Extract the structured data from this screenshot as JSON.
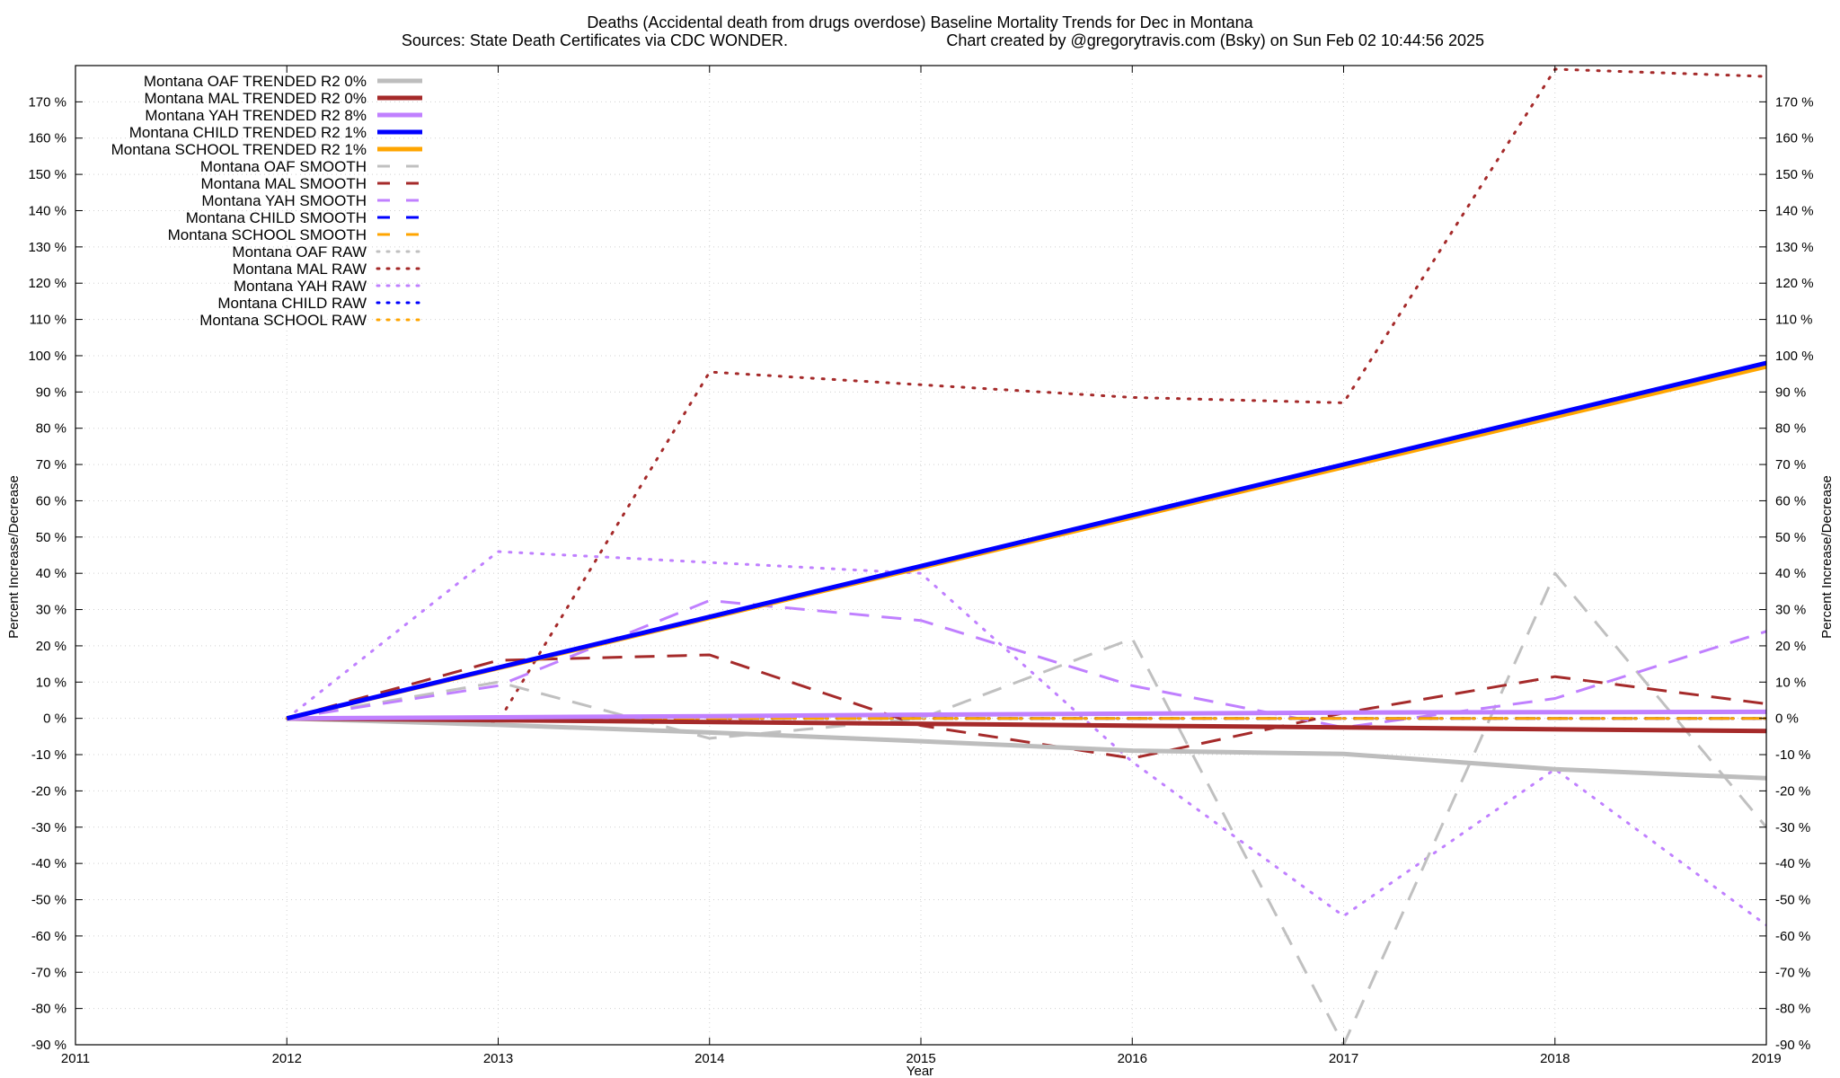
{
  "chart_data": {
    "type": "line",
    "title": "Deaths (Accidental death from drugs overdose)  Baseline Mortality Trends for Dec in Montana",
    "subtitle_left": "Sources: State Death Certificates via CDC WONDER.",
    "subtitle_right": "Chart created by @gregorytravis.com (Bsky) on Sun Feb 02 10:44:56 2025",
    "xlabel": "Year",
    "ylabel_left": "Percent Increase/Decrease",
    "ylabel_right": "Percent Increase/Decrease",
    "xlim": [
      2011,
      2019
    ],
    "ylim": [
      -90,
      180
    ],
    "x_ticks": [
      "2011",
      "2012",
      "2013",
      "2014",
      "2015",
      "2016",
      "2017",
      "2018",
      "2019"
    ],
    "y_ticks": [
      "-90 %",
      "-80 %",
      "-70 %",
      "-60 %",
      "-50 %",
      "-40 %",
      "-30 %",
      "-20 %",
      "-10 %",
      "0 %",
      "10 %",
      "20 %",
      "30 %",
      "40 %",
      "50 %",
      "60 %",
      "70 %",
      "80 %",
      "90 %",
      "100 %",
      "110 %",
      "120 %",
      "130 %",
      "140 %",
      "150 %",
      "160 %",
      "170 %"
    ],
    "grid": true,
    "legend_position": "top-left",
    "series": [
      {
        "name": "Montana OAF TRENDED R2   0%",
        "style": "trend",
        "color": "#bdbdbd",
        "x": [
          2012,
          2013,
          2014,
          2015,
          2016,
          2017,
          2018,
          2019
        ],
        "values": [
          0,
          -1.8,
          -3.9,
          -6.3,
          -8.9,
          -9.8,
          -14,
          -16.5
        ]
      },
      {
        "name": "Montana MAL TRENDED R2   0%",
        "style": "trend",
        "color": "#a52a2a",
        "x": [
          2012,
          2019
        ],
        "values": [
          0,
          -3.5
        ]
      },
      {
        "name": "Montana YAH TRENDED R2   8%",
        "style": "trend",
        "color": "#c080ff",
        "x": [
          2012,
          2013,
          2014,
          2015,
          2016,
          2017,
          2018,
          2019
        ],
        "values": [
          0,
          0.3,
          0.6,
          1.0,
          1.3,
          1.6,
          1.7,
          1.8
        ]
      },
      {
        "name": "Montana CHILD TRENDED R2   1%",
        "style": "trend",
        "color": "#0000ff",
        "x": [
          2012,
          2019
        ],
        "values": [
          0,
          98
        ]
      },
      {
        "name": "Montana SCHOOL TRENDED R2   1%",
        "style": "trend",
        "color": "#ffa500",
        "x": [
          2012,
          2019
        ],
        "values": [
          0,
          97
        ]
      },
      {
        "name": "Montana OAF SMOOTH",
        "style": "smooth",
        "color": "#c0c0c0",
        "x": [
          2012,
          2013,
          2014,
          2015,
          2016,
          2017,
          2018,
          2019
        ],
        "values": [
          0,
          10,
          -5.5,
          0,
          22,
          -90,
          40,
          -30
        ]
      },
      {
        "name": "Montana MAL SMOOTH",
        "style": "smooth",
        "color": "#a52a2a",
        "x": [
          2012,
          2013,
          2014,
          2015,
          2016,
          2017,
          2018,
          2019
        ],
        "values": [
          0,
          16,
          17.5,
          -2,
          -11,
          1.5,
          11.5,
          4
        ]
      },
      {
        "name": "Montana YAH SMOOTH",
        "style": "smooth",
        "color": "#c080ff",
        "x": [
          2012,
          2013,
          2014,
          2015,
          2016,
          2017,
          2018,
          2019
        ],
        "values": [
          0,
          9,
          32.5,
          27,
          9,
          -2.5,
          5.5,
          24
        ]
      },
      {
        "name": "Montana CHILD SMOOTH",
        "style": "smooth",
        "color": "#0000ff",
        "x": [
          2012,
          2019
        ],
        "values": [
          0,
          0
        ]
      },
      {
        "name": "Montana SCHOOL SMOOTH",
        "style": "smooth",
        "color": "#ffa500",
        "x": [
          2012,
          2019
        ],
        "values": [
          0,
          0
        ]
      },
      {
        "name": "Montana OAF RAW",
        "style": "raw",
        "color": "#c0c0c0",
        "x": [
          2012,
          2019
        ],
        "values": [
          0,
          0
        ]
      },
      {
        "name": "Montana MAL RAW",
        "style": "raw",
        "color": "#a52a2a",
        "x": [
          2012,
          2013,
          2014,
          2015,
          2016,
          2017,
          2018,
          2019
        ],
        "values": [
          0,
          -1,
          95.5,
          92,
          88.5,
          87,
          179,
          177
        ]
      },
      {
        "name": "Montana YAH RAW",
        "style": "raw",
        "color": "#c080ff",
        "x": [
          2012,
          2013,
          2014,
          2015,
          2016,
          2017,
          2018,
          2019
        ],
        "values": [
          0,
          46,
          43,
          40,
          -12,
          -54.5,
          -14,
          -57
        ]
      },
      {
        "name": "Montana CHILD RAW",
        "style": "raw",
        "color": "#0000ff",
        "x": [
          2012,
          2019
        ],
        "values": [
          0,
          0
        ]
      },
      {
        "name": "Montana SCHOOL RAW",
        "style": "raw",
        "color": "#ffa500",
        "x": [
          2012,
          2019
        ],
        "values": [
          0,
          0
        ]
      }
    ]
  }
}
